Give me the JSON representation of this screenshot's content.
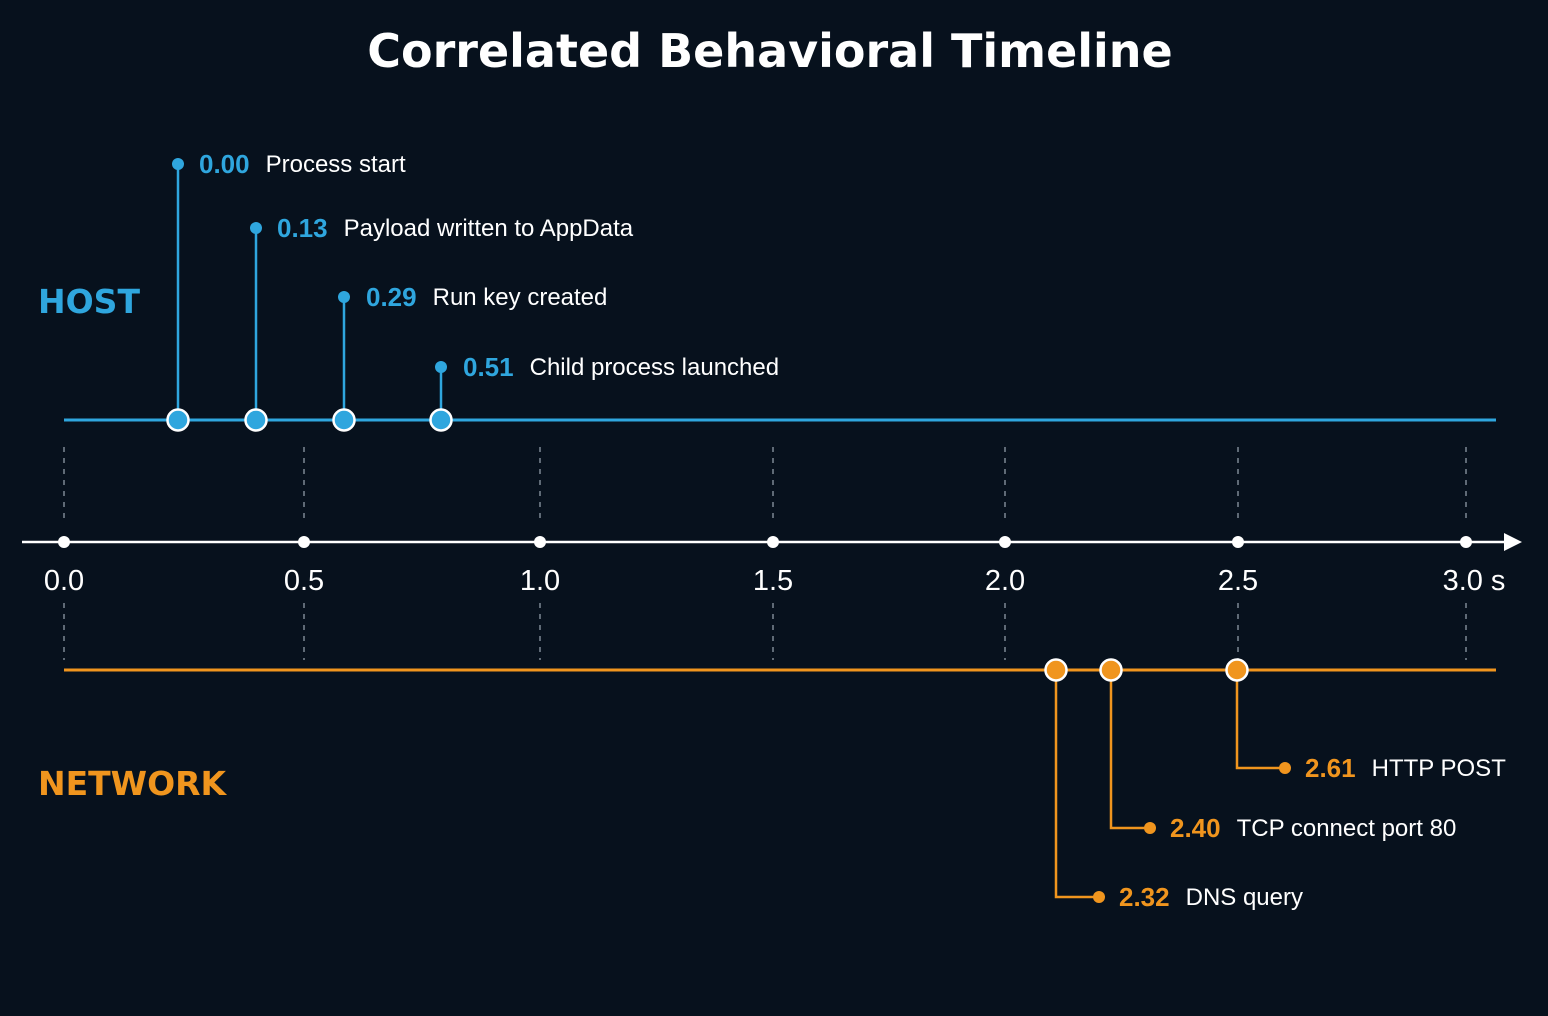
{
  "title": "Correlated Behavioral Timeline",
  "colors": {
    "background": "#07111d",
    "host": "#2fa6de",
    "network": "#f0951e",
    "axis": "#ffffff",
    "grid": "#7d8894"
  },
  "axis": {
    "ticks": [
      {
        "value": 0.0,
        "label": "0.0"
      },
      {
        "value": 0.5,
        "label": "0.5"
      },
      {
        "value": 1.0,
        "label": "1.0"
      },
      {
        "value": 1.5,
        "label": "1.5"
      },
      {
        "value": 2.0,
        "label": "2.0"
      },
      {
        "value": 2.5,
        "label": "2.5"
      },
      {
        "value": 3.0,
        "label": "3.0 s"
      }
    ]
  },
  "lanes": {
    "host": {
      "label": "HOST",
      "events": [
        {
          "time": "0.00",
          "label": "Process start"
        },
        {
          "time": "0.13",
          "label": "Payload written to AppData"
        },
        {
          "time": "0.29",
          "label": "Run key created"
        },
        {
          "time": "0.51",
          "label": "Child process launched"
        }
      ]
    },
    "network": {
      "label": "NETWORK",
      "events": [
        {
          "time": "2.32",
          "label": "DNS query"
        },
        {
          "time": "2.40",
          "label": "TCP connect port 80"
        },
        {
          "time": "2.61",
          "label": "HTTP POST"
        }
      ]
    }
  }
}
